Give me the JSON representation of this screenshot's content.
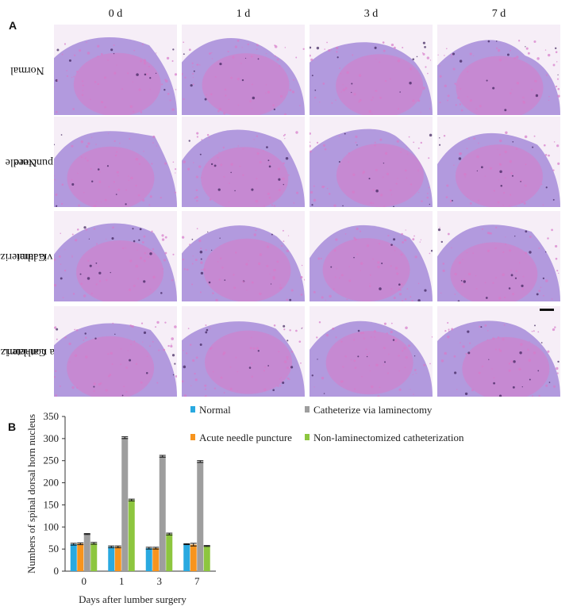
{
  "panel_a": {
    "label": "A",
    "columns": [
      "0 d",
      "1 d",
      "3 d",
      "7 d"
    ],
    "rows": [
      {
        "lines": [
          "Normal"
        ]
      },
      {
        "lines": [
          "Needle",
          "puncture"
        ]
      },
      {
        "lines": [
          "Catheterize",
          "via lami."
        ]
      },
      {
        "lines": [
          "Catheterize",
          "via non-lami."
        ]
      }
    ],
    "stain_colors": {
      "pink": "#d77bc9",
      "purple": "#9b7ed6",
      "background": "#f6eef7",
      "dark": "#3b1f58"
    }
  },
  "panel_b": {
    "label": "B"
  },
  "chart_data": {
    "type": "bar",
    "categories": [
      "0",
      "1",
      "3",
      "7"
    ],
    "series": [
      {
        "name": "Normal",
        "color": "#29a9e0",
        "values": [
          61,
          55,
          52,
          61
        ],
        "errors": [
          2,
          2,
          2,
          1
        ]
      },
      {
        "name": "Acute needle puncture",
        "color": "#f7941d",
        "values": [
          62,
          55,
          52,
          60
        ],
        "errors": [
          2,
          2,
          2,
          3
        ]
      },
      {
        "name": "Catheterize via laminectomy",
        "color": "#9e9e9e",
        "values": [
          84,
          302,
          260,
          248
        ],
        "errors": [
          1,
          2,
          2,
          2
        ]
      },
      {
        "name": "Non-laminectomized catheterization",
        "color": "#8dc63f",
        "values": [
          63,
          161,
          84,
          57
        ],
        "errors": [
          2,
          2,
          2,
          1
        ]
      }
    ],
    "xlabel": "Days after lumber surgery",
    "ylabel": "Numbers of spinal dorsal horn nucleus",
    "ylim": [
      0,
      350
    ],
    "yticks": [
      0,
      50,
      100,
      150,
      200,
      250,
      300,
      350
    ],
    "legend_position": "top-right",
    "grid": false
  }
}
